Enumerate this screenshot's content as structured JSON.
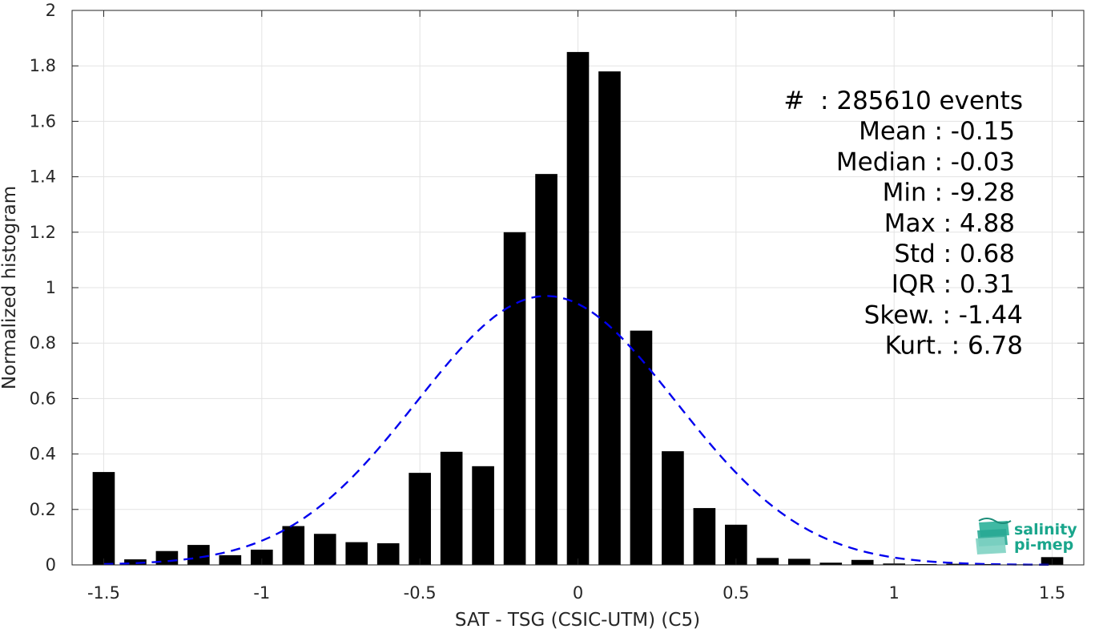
{
  "chart_data": {
    "type": "bar",
    "xlabel": "SAT - TSG (CSIC-UTM) (C5)",
    "ylabel": "Normalized histogram",
    "xlim": [
      -1.6,
      1.6
    ],
    "ylim": [
      0,
      2
    ],
    "xticks": [
      -1.5,
      -1,
      -0.5,
      0,
      0.5,
      1,
      1.5
    ],
    "xtick_labels": [
      "-1.5",
      "-1",
      "-0.5",
      "0",
      "0.5",
      "1",
      "1.5"
    ],
    "yticks": [
      0,
      0.2,
      0.4,
      0.6,
      0.8,
      1,
      1.2,
      1.4,
      1.6,
      1.8,
      2
    ],
    "ytick_labels": [
      "0",
      "0.2",
      "0.4",
      "0.6",
      "0.8",
      "1",
      "1.2",
      "1.4",
      "1.6",
      "1.8",
      "2"
    ],
    "grid": true,
    "bar_color": "#000000",
    "bar_width": 0.07,
    "bars": {
      "x": [
        -1.5,
        -1.4,
        -1.3,
        -1.2,
        -1.1,
        -1.0,
        -0.9,
        -0.8,
        -0.7,
        -0.6,
        -0.5,
        -0.4,
        -0.3,
        -0.2,
        -0.1,
        0.0,
        0.1,
        0.2,
        0.3,
        0.4,
        0.5,
        0.6,
        0.7,
        0.8,
        0.9,
        1.0,
        1.1,
        1.2,
        1.3,
        1.4,
        1.5
      ],
      "values": [
        0.335,
        0.02,
        0.05,
        0.072,
        0.035,
        0.055,
        0.14,
        0.112,
        0.082,
        0.078,
        0.332,
        0.408,
        0.356,
        1.2,
        1.41,
        1.85,
        1.78,
        0.845,
        0.41,
        0.205,
        0.145,
        0.025,
        0.022,
        0.008,
        0.018,
        0.005,
        0.003,
        0.004,
        0.003,
        0.002,
        0.028
      ]
    },
    "fit_curve": {
      "style": "dashed",
      "color": "#0000ee",
      "mean": -0.1,
      "std": 0.41,
      "peak": 0.97,
      "x_range": [
        -1.5,
        1.5
      ]
    }
  },
  "stats": {
    "lines": [
      "#  : 285610 events",
      "Mean : -0.15",
      "Median : -0.03",
      "Min : -9.28",
      "Max : 4.88",
      "Std : 0.68",
      "IQR : 0.31",
      "Skew. : -1.44",
      "Kurt. : 6.78"
    ]
  },
  "logo": {
    "line1": "salinity",
    "line2": "pi-mep",
    "color": "#1aa68c"
  }
}
